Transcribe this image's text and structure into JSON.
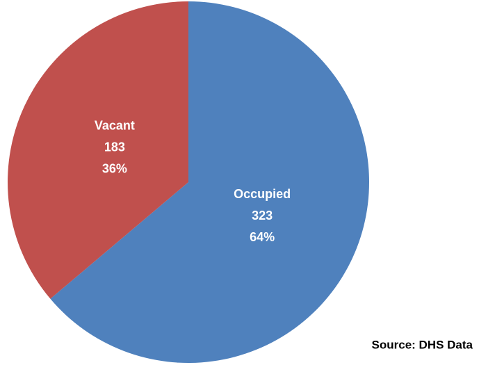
{
  "chart_data": {
    "type": "pie",
    "categories": [
      "Occupied",
      "Vacant"
    ],
    "values": [
      323,
      183
    ],
    "percent_labels": [
      "64%",
      "36%"
    ],
    "colors": [
      "#4f81bd",
      "#c0504d"
    ],
    "source": "Source: DHS Data"
  }
}
